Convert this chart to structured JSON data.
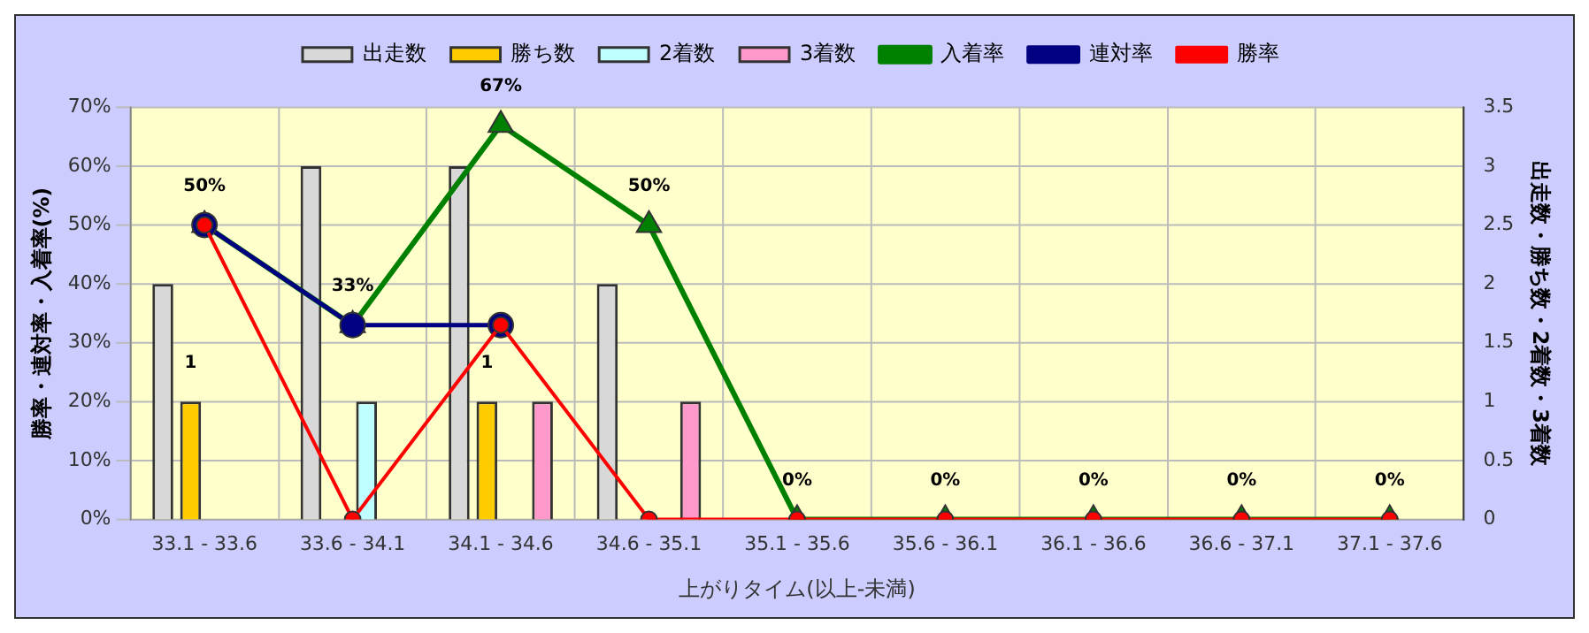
{
  "chart_data": {
    "type": "bar",
    "xlabel": "上がりタイム(以上-未満)",
    "ylabel": "勝率・連対率・入着率(%)",
    "y2label": "出走数・勝ち数・2着数・3着数",
    "categories": [
      "33.1 - 33.6",
      "33.6 - 34.1",
      "34.1 - 34.6",
      "34.6 - 35.1",
      "35.1 - 35.6",
      "35.6 - 36.1",
      "36.1 - 36.6",
      "36.6 - 37.1",
      "37.1 - 37.6"
    ],
    "series": [
      {
        "name": "出走数",
        "axis": "y2",
        "color": "#d8d8d8",
        "values": [
          2,
          3,
          3,
          2,
          0,
          0,
          0,
          0,
          0
        ]
      },
      {
        "name": "勝ち数",
        "axis": "y2",
        "color": "#ffcc00",
        "values": [
          1,
          0,
          1,
          0,
          0,
          0,
          0,
          0,
          0
        ],
        "value_labels": [
          "1",
          null,
          "1",
          null,
          null,
          null,
          null,
          null,
          null
        ]
      },
      {
        "name": "2着数",
        "axis": "y2",
        "color": "#c0ffff",
        "values": [
          0,
          1,
          0,
          0,
          0,
          0,
          0,
          0,
          0
        ]
      },
      {
        "name": "3着数",
        "axis": "y2",
        "color": "#ff99cc",
        "values": [
          0,
          0,
          1,
          1,
          0,
          0,
          0,
          0,
          0
        ]
      },
      {
        "name": "入着率",
        "type": "line",
        "axis": "y",
        "color": "#008000",
        "marker": "triangle",
        "values": [
          50,
          33,
          67,
          50,
          0,
          0,
          0,
          0,
          0
        ],
        "value_labels": [
          "50%",
          "33%",
          "67%",
          "50%",
          "0%",
          "0%",
          "0%",
          "0%",
          "0%"
        ]
      },
      {
        "name": "連対率",
        "type": "line",
        "axis": "y",
        "color": "#000080",
        "marker": "circle",
        "values": [
          50,
          33,
          33,
          null,
          null,
          null,
          null,
          null,
          null
        ]
      },
      {
        "name": "勝率",
        "type": "line",
        "axis": "y",
        "color": "#ff0000",
        "marker": "circle",
        "values": [
          50,
          0,
          33,
          0,
          0,
          0,
          0,
          0,
          0
        ]
      }
    ],
    "ylim": [
      0,
      70
    ],
    "yticks": [
      {
        "value": 0,
        "label": "0%"
      },
      {
        "value": 10,
        "label": "10%"
      },
      {
        "value": 20,
        "label": "20%"
      },
      {
        "value": 30,
        "label": "30%"
      },
      {
        "value": 40,
        "label": "40%"
      },
      {
        "value": 50,
        "label": "50%"
      },
      {
        "value": 60,
        "label": "60%"
      },
      {
        "value": 70,
        "label": "70%"
      }
    ],
    "y2lim": [
      0,
      3.5
    ],
    "y2ticks": [
      0,
      0.5,
      1,
      1.5,
      2,
      2.5,
      3,
      3.5
    ],
    "grid": true,
    "legend": "top"
  }
}
